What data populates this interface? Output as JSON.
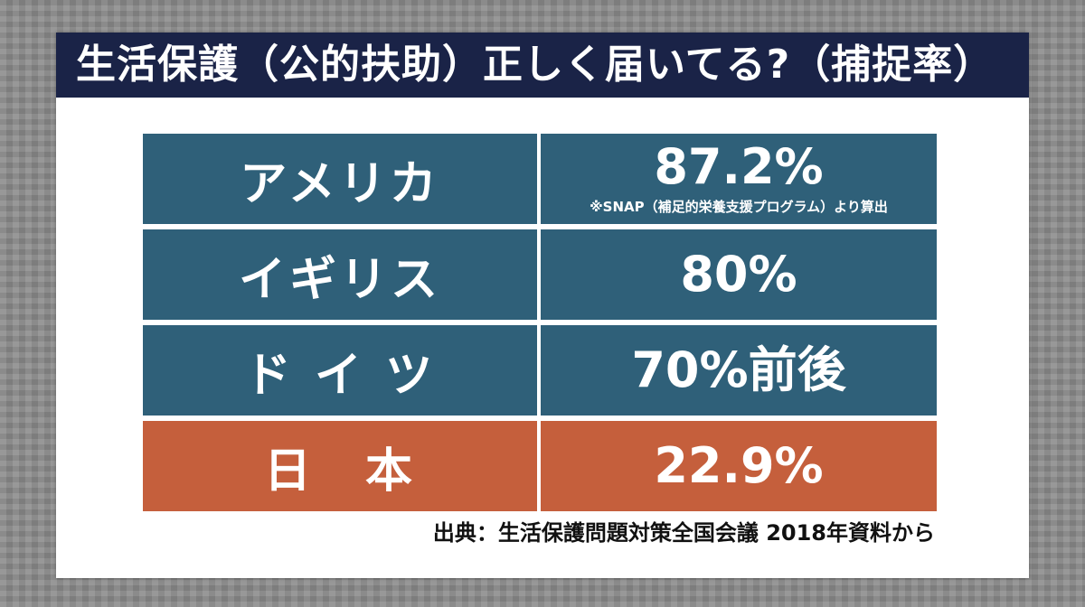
{
  "title": "生活保護（公的扶助）正しく届いてる?（捕捉率）",
  "colors": {
    "title_bg": "#1a2347",
    "row_default": "#2f6079",
    "row_highlight": "#c55f3c",
    "text": "#ffffff"
  },
  "chart_data": {
    "type": "table",
    "title": "生活保護（公的扶助）正しく届いてる?（捕捉率）",
    "rows": [
      {
        "country": "アメリカ",
        "value_text": "87.2%",
        "value": 87.2,
        "note": "※SNAP（補足的栄養支援プログラム）より算出",
        "highlight": false
      },
      {
        "country": "イギリス",
        "value_text": "80%",
        "value": 80,
        "note": "",
        "highlight": false
      },
      {
        "country": "ド イ ツ",
        "value_text": "70%前後",
        "value": 70,
        "note": "",
        "highlight": false
      },
      {
        "country": "日　本",
        "value_text": "22.9%",
        "value": 22.9,
        "note": "",
        "highlight": true
      }
    ],
    "source": "出典：生活保護問題対策全国会議 2018年資料から"
  }
}
